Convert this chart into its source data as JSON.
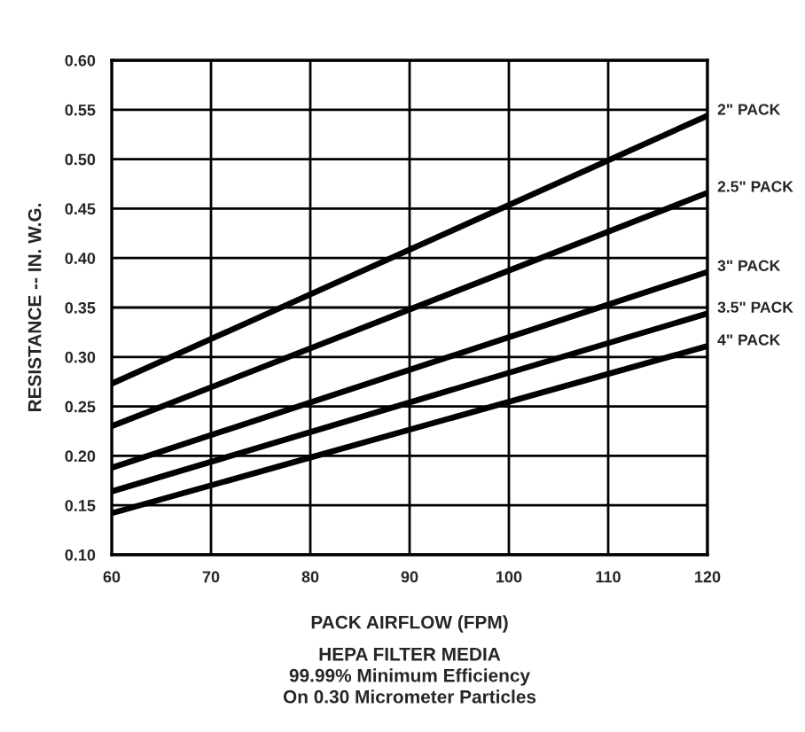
{
  "chart_data": {
    "type": "line",
    "x": [
      60,
      120
    ],
    "series": [
      {
        "name": "2\" PACK",
        "color": "#000000",
        "values": [
          0.273,
          0.544
        ]
      },
      {
        "name": "2.5\" PACK",
        "color": "#000000",
        "values": [
          0.23,
          0.466
        ]
      },
      {
        "name": "3\" PACK",
        "color": "#000000",
        "values": [
          0.188,
          0.386
        ]
      },
      {
        "name": "3.5\" PACK",
        "color": "#000000",
        "values": [
          0.164,
          0.344
        ]
      },
      {
        "name": "4\" PACK",
        "color": "#000000",
        "values": [
          0.142,
          0.311
        ]
      }
    ],
    "xlabel": "PACK AIRFLOW (FPM)",
    "ylabel": "RESISTANCE -- IN. W.G.",
    "annotations": [
      "HEPA FILTER MEDIA",
      "99.99% Minimum Efficiency",
      "On 0.30 Micrometer Particles"
    ],
    "xlim": [
      60,
      120
    ],
    "xticks": [
      60,
      70,
      80,
      90,
      100,
      110,
      120
    ],
    "ylim": [
      0.1,
      0.6
    ],
    "yticks": [
      {
        "value": 0.1,
        "label": "0.10"
      },
      {
        "value": 0.15,
        "label": "0.15"
      },
      {
        "value": 0.2,
        "label": "0.20"
      },
      {
        "value": 0.25,
        "label": "0.25"
      },
      {
        "value": 0.3,
        "label": "0.30"
      },
      {
        "value": 0.35,
        "label": "0.35"
      },
      {
        "value": 0.4,
        "label": "0.40"
      },
      {
        "value": 0.45,
        "label": "0.45"
      },
      {
        "value": 0.5,
        "label": "0.50"
      },
      {
        "value": 0.55,
        "label": "0.55"
      },
      {
        "value": 0.6,
        "label": "0.60"
      }
    ],
    "grid": true,
    "legend": false,
    "marker": "none",
    "line_style": "solid"
  }
}
